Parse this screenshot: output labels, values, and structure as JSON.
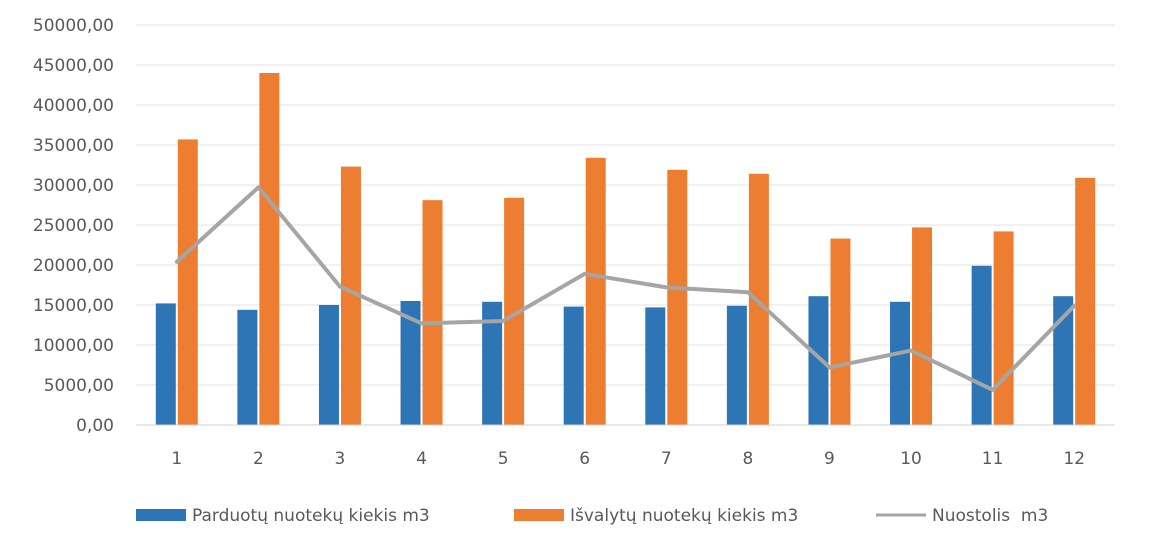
{
  "chart_data": {
    "type": "bar",
    "categories": [
      "1",
      "2",
      "3",
      "4",
      "5",
      "6",
      "7",
      "8",
      "9",
      "10",
      "11",
      "12"
    ],
    "y_ticks": [
      "0,00",
      "5000,00",
      "10000,00",
      "15000,00",
      "20000,00",
      "25000,00",
      "30000,00",
      "35000,00",
      "40000,00",
      "45000,00",
      "50000,00"
    ],
    "ylim": [
      0,
      50000
    ],
    "grid": true,
    "legend_position": "bottom",
    "series": [
      {
        "name": "Parduotų nuotekų kiekis m3",
        "type": "bar",
        "color": "#2E75B6",
        "values": [
          15200,
          14400,
          15000,
          15500,
          15400,
          14800,
          14700,
          14900,
          16100,
          15400,
          19900,
          16100
        ]
      },
      {
        "name": "Išvalytų nuotekų kiekis m3",
        "type": "bar",
        "color": "#ED7D31",
        "values": [
          35700,
          44000,
          32300,
          28100,
          28400,
          33400,
          31900,
          31400,
          23300,
          24700,
          24200,
          30900
        ]
      },
      {
        "name": "Nuostolis  m3",
        "type": "line",
        "color": "#A5A5A5",
        "values": [
          20400,
          29700,
          17300,
          12700,
          13000,
          18900,
          17200,
          16600,
          7200,
          9300,
          4400,
          14900
        ]
      }
    ]
  }
}
